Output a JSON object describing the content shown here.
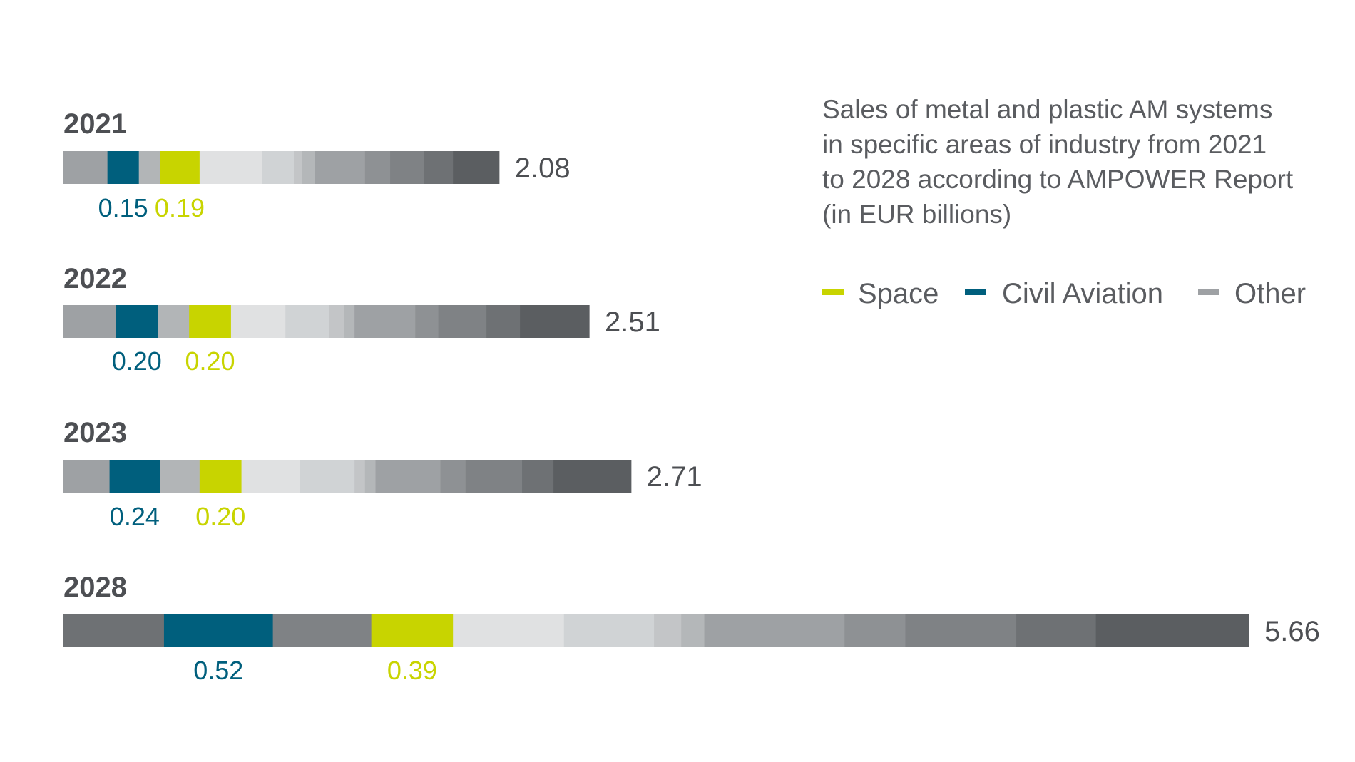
{
  "chart_data": {
    "type": "bar",
    "title_lines": [
      "Sales of metal and plastic AM systems",
      "in specific areas of industry from 2021",
      "to 2028 according to AMPOWER Report",
      "(in EUR billions)"
    ],
    "legend": [
      {
        "name": "Space",
        "color": "#c8d400"
      },
      {
        "name": "Civil Aviation",
        "color": "#005f7d"
      },
      {
        "name": "Other",
        "color": "#9ea1a4"
      }
    ],
    "colors": {
      "space": "#c8d400",
      "civil_aviation": "#005f7d"
    },
    "categories": [
      "2021",
      "2022",
      "2023",
      "2028"
    ],
    "totals": [
      2.08,
      2.51,
      2.71,
      5.66
    ],
    "total_labels": [
      "2.08",
      "2.51",
      "2.71",
      "5.66"
    ],
    "civil_aviation": [
      0.15,
      0.2,
      0.24,
      0.52
    ],
    "civil_aviation_labels": [
      "0.15",
      "0.20",
      "0.24",
      "0.52"
    ],
    "space": [
      0.19,
      0.2,
      0.2,
      0.39
    ],
    "space_labels": [
      "0.19",
      "0.20",
      "0.20",
      "0.39"
    ],
    "segments": [
      [
        {
          "series": "other",
          "value": 0.21,
          "color": "#9ea1a4"
        },
        {
          "series": "civil_aviation",
          "value": 0.15,
          "color": "#005f7d"
        },
        {
          "series": "other",
          "value": 0.1,
          "color": "#b2b5b7"
        },
        {
          "series": "space",
          "value": 0.19,
          "color": "#c8d400"
        },
        {
          "series": "other",
          "value": 0.3,
          "color": "#e0e1e2"
        },
        {
          "series": "other",
          "value": 0.15,
          "color": "#d0d3d5"
        },
        {
          "series": "other",
          "value": 0.04,
          "color": "#c3c5c7"
        },
        {
          "series": "other",
          "value": 0.06,
          "color": "#b4b7b9"
        },
        {
          "series": "other",
          "value": 0.24,
          "color": "#9ea1a4"
        },
        {
          "series": "other",
          "value": 0.12,
          "color": "#8e9194"
        },
        {
          "series": "other",
          "value": 0.16,
          "color": "#7f8285"
        },
        {
          "series": "other",
          "value": 0.14,
          "color": "#6e7174"
        },
        {
          "series": "other",
          "value": 0.22,
          "color": "#5b5e61"
        }
      ],
      [
        {
          "series": "other",
          "value": 0.25,
          "color": "#9ea1a4"
        },
        {
          "series": "civil_aviation",
          "value": 0.2,
          "color": "#005f7d"
        },
        {
          "series": "other",
          "value": 0.15,
          "color": "#b2b5b7"
        },
        {
          "series": "space",
          "value": 0.2,
          "color": "#c8d400"
        },
        {
          "series": "other",
          "value": 0.26,
          "color": "#e0e1e2"
        },
        {
          "series": "other",
          "value": 0.21,
          "color": "#d0d3d5"
        },
        {
          "series": "other",
          "value": 0.07,
          "color": "#c3c5c7"
        },
        {
          "series": "other",
          "value": 0.05,
          "color": "#b4b7b9"
        },
        {
          "series": "other",
          "value": 0.29,
          "color": "#9ea1a4"
        },
        {
          "series": "other",
          "value": 0.11,
          "color": "#8e9194"
        },
        {
          "series": "other",
          "value": 0.23,
          "color": "#7f8285"
        },
        {
          "series": "other",
          "value": 0.16,
          "color": "#6e7174"
        },
        {
          "series": "other",
          "value": 0.33,
          "color": "#5b5e61"
        }
      ],
      [
        {
          "series": "other",
          "value": 0.22,
          "color": "#9ea1a4"
        },
        {
          "series": "civil_aviation",
          "value": 0.24,
          "color": "#005f7d"
        },
        {
          "series": "other",
          "value": 0.19,
          "color": "#b2b5b7"
        },
        {
          "series": "space",
          "value": 0.2,
          "color": "#c8d400"
        },
        {
          "series": "other",
          "value": 0.28,
          "color": "#e0e1e2"
        },
        {
          "series": "other",
          "value": 0.26,
          "color": "#d0d3d5"
        },
        {
          "series": "other",
          "value": 0.05,
          "color": "#c3c5c7"
        },
        {
          "series": "other",
          "value": 0.05,
          "color": "#b4b7b9"
        },
        {
          "series": "other",
          "value": 0.31,
          "color": "#9ea1a4"
        },
        {
          "series": "other",
          "value": 0.12,
          "color": "#8e9194"
        },
        {
          "series": "other",
          "value": 0.27,
          "color": "#7f8285"
        },
        {
          "series": "other",
          "value": 0.15,
          "color": "#6e7174"
        },
        {
          "series": "other",
          "value": 0.37,
          "color": "#5b5e61"
        }
      ],
      [
        {
          "series": "other",
          "value": 0.48,
          "color": "#6e7174"
        },
        {
          "series": "civil_aviation",
          "value": 0.52,
          "color": "#005f7d"
        },
        {
          "series": "other",
          "value": 0.47,
          "color": "#7f8285"
        },
        {
          "series": "space",
          "value": 0.39,
          "color": "#c8d400"
        },
        {
          "series": "other",
          "value": 0.53,
          "color": "#e0e1e2"
        },
        {
          "series": "other",
          "value": 0.43,
          "color": "#d0d3d5"
        },
        {
          "series": "other",
          "value": 0.13,
          "color": "#c3c5c7"
        },
        {
          "series": "other",
          "value": 0.11,
          "color": "#b4b7b9"
        },
        {
          "series": "other",
          "value": 0.67,
          "color": "#9ea1a4"
        },
        {
          "series": "other",
          "value": 0.29,
          "color": "#8e9194"
        },
        {
          "series": "other",
          "value": 0.53,
          "color": "#7f8285"
        },
        {
          "series": "other",
          "value": 0.38,
          "color": "#6e7174"
        },
        {
          "series": "other",
          "value": 0.73,
          "color": "#5b5e61"
        }
      ]
    ]
  }
}
